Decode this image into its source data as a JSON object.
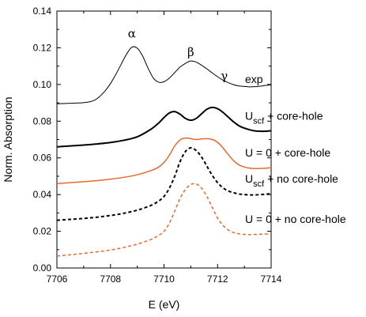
{
  "chart_data": {
    "type": "line",
    "title": "",
    "xlabel": "E (eV)",
    "ylabel": "Norm. Absorption",
    "xlim": [
      7706,
      7714
    ],
    "ylim": [
      0.0,
      0.14
    ],
    "xticks": [
      "7706",
      "7708",
      "7710",
      "7712",
      "7714"
    ],
    "yticks": [
      "0.00",
      "0.02",
      "0.04",
      "0.06",
      "0.08",
      "0.10",
      "0.12",
      "0.14"
    ],
    "grid": false,
    "colors": {
      "black": "#000000",
      "orange": "#E8692C"
    },
    "peak_labels": [
      {
        "text": "α",
        "x": 7708.8,
        "y": 0.1255
      },
      {
        "text": "β",
        "x": 7711.0,
        "y": 0.1155
      },
      {
        "text": "γ",
        "x": 7712.25,
        "y": 0.1025
      }
    ],
    "series": [
      {
        "name": "exp",
        "color": "#000000",
        "style": "solid",
        "width": 1,
        "label": {
          "main": "exp",
          "sub": "",
          "rest": ""
        },
        "x": [
          7706,
          7706.4,
          7706.8,
          7707.0,
          7707.2,
          7707.4,
          7707.6,
          7707.8,
          7708.0,
          7708.2,
          7708.4,
          7708.6,
          7708.8,
          7709.0,
          7709.2,
          7709.4,
          7709.6,
          7709.8,
          7710.0,
          7710.2,
          7710.4,
          7710.6,
          7710.8,
          7711.0,
          7711.2,
          7711.4,
          7711.6,
          7711.8,
          7712.0,
          7712.2,
          7712.4,
          7712.6,
          7712.8,
          7713.0,
          7713.2,
          7713.4,
          7713.6,
          7713.8,
          7714.0
        ],
        "y": [
          0.0895,
          0.0897,
          0.0899,
          0.0901,
          0.0905,
          0.0914,
          0.0935,
          0.0965,
          0.1005,
          0.1055,
          0.111,
          0.1165,
          0.1203,
          0.1198,
          0.1155,
          0.109,
          0.1035,
          0.1012,
          0.1015,
          0.1035,
          0.1065,
          0.1095,
          0.1115,
          0.1128,
          0.1122,
          0.1105,
          0.1085,
          0.1063,
          0.1042,
          0.1024,
          0.101,
          0.0999,
          0.0992,
          0.0989,
          0.0987,
          0.0988,
          0.0991,
          0.0995,
          0.0998
        ]
      },
      {
        "name": "Uscf + core-hole",
        "color": "#000000",
        "style": "solid",
        "width": 2,
        "label": {
          "main": "U",
          "sub": "scf",
          "rest": " + core-hole"
        },
        "x": [
          7706,
          7706.5,
          7707.0,
          7707.5,
          7708.0,
          7708.5,
          7709.0,
          7709.5,
          7709.8,
          7710.0,
          7710.2,
          7710.4,
          7710.6,
          7710.8,
          7711.0,
          7711.2,
          7711.4,
          7711.6,
          7711.8,
          7712.0,
          7712.2,
          7712.4,
          7712.6,
          7712.8,
          7713.0,
          7713.2,
          7713.4,
          7713.6,
          7713.8,
          7714.0
        ],
        "y": [
          0.066,
          0.0665,
          0.067,
          0.0676,
          0.0684,
          0.0696,
          0.0715,
          0.0755,
          0.079,
          0.082,
          0.0845,
          0.0852,
          0.0838,
          0.0815,
          0.0805,
          0.0815,
          0.084,
          0.0865,
          0.0875,
          0.0868,
          0.0848,
          0.0822,
          0.0796,
          0.0775,
          0.0762,
          0.0753,
          0.0747,
          0.0745,
          0.0745,
          0.0748
        ]
      },
      {
        "name": "U = 0 + core-hole",
        "color": "#E8692C",
        "style": "solid",
        "width": 1.5,
        "label": {
          "main": "U = 0 + core-hole",
          "sub": "",
          "rest": ""
        },
        "x": [
          7706,
          7706.5,
          7707.0,
          7707.5,
          7708.0,
          7708.5,
          7709.0,
          7709.5,
          7709.8,
          7710.0,
          7710.2,
          7710.4,
          7710.6,
          7710.8,
          7711.0,
          7711.2,
          7711.4,
          7711.6,
          7711.8,
          7712.0,
          7712.2,
          7712.4,
          7712.6,
          7712.8,
          7713.0,
          7713.2,
          7713.4,
          7713.6,
          7713.8,
          7714.0
        ],
        "y": [
          0.046,
          0.0465,
          0.047,
          0.0476,
          0.0484,
          0.0494,
          0.0508,
          0.053,
          0.055,
          0.0575,
          0.0615,
          0.0665,
          0.0698,
          0.0708,
          0.0705,
          0.07,
          0.0703,
          0.0705,
          0.07,
          0.0685,
          0.0655,
          0.0618,
          0.0584,
          0.0562,
          0.055,
          0.0544,
          0.0542,
          0.0542,
          0.0544,
          0.0547
        ]
      },
      {
        "name": "Uscf + no core-hole",
        "color": "#000000",
        "style": "dashed",
        "width": 2,
        "label": {
          "main": "U",
          "sub": "scf",
          "rest": " + no core-hole"
        },
        "x": [
          7706,
          7706.5,
          7707.0,
          7707.5,
          7708.0,
          7708.5,
          7709.0,
          7709.5,
          7709.8,
          7710.0,
          7710.2,
          7710.4,
          7710.6,
          7710.8,
          7711.0,
          7711.2,
          7711.4,
          7711.6,
          7711.8,
          7712.0,
          7712.2,
          7712.4,
          7712.6,
          7712.8,
          7713.0,
          7713.2,
          7713.4,
          7713.6,
          7713.8,
          7714.0
        ],
        "y": [
          0.026,
          0.0265,
          0.027,
          0.0277,
          0.0286,
          0.0298,
          0.0315,
          0.034,
          0.0365,
          0.039,
          0.0435,
          0.05,
          0.058,
          0.0635,
          0.0655,
          0.064,
          0.0605,
          0.0555,
          0.0505,
          0.0465,
          0.0437,
          0.042,
          0.041,
          0.0403,
          0.04,
          0.0398,
          0.0398,
          0.04,
          0.0402,
          0.0405
        ]
      },
      {
        "name": "U = 0 + no core-hole",
        "color": "#E8692C",
        "style": "dashed",
        "width": 1.5,
        "label": {
          "main": "U = 0 + no core-hole",
          "sub": "",
          "rest": ""
        },
        "x": [
          7706,
          7706.5,
          7707.0,
          7707.5,
          7708.0,
          7708.5,
          7709.0,
          7709.5,
          7709.8,
          7710.0,
          7710.2,
          7710.4,
          7710.6,
          7710.8,
          7711.0,
          7711.2,
          7711.4,
          7711.6,
          7711.8,
          7712.0,
          7712.2,
          7712.4,
          7712.6,
          7712.8,
          7713.0,
          7713.2,
          7713.4,
          7713.6,
          7713.8,
          7714.0
        ],
        "y": [
          0.0065,
          0.0072,
          0.008,
          0.0088,
          0.0098,
          0.0112,
          0.013,
          0.0155,
          0.0178,
          0.02,
          0.0245,
          0.031,
          0.038,
          0.0428,
          0.0455,
          0.0458,
          0.0435,
          0.039,
          0.033,
          0.0272,
          0.0232,
          0.0207,
          0.0193,
          0.0186,
          0.0183,
          0.0182,
          0.0183,
          0.0184,
          0.0185,
          0.0186
        ]
      }
    ]
  }
}
